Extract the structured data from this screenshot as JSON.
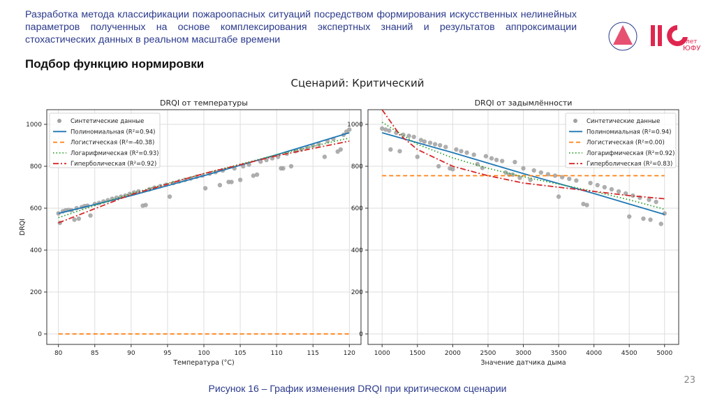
{
  "header": {
    "title": "Разработка метода классификации пожароопасных ситуаций посредством формирования искусственных нелинейных параметров полученных на основе комплексирования экспертных знаний и  результатов аппроксимации стохастических данных в реальном масштабе времени",
    "subtitle": "Подбор функцию нормировки",
    "logo_text": "110 лет ЮФУ"
  },
  "figure": {
    "suptitle": "Сценарий: Критический",
    "caption": "Рисунок 16 – График изменения DRQI при критическом сценарии",
    "page_number": "23"
  },
  "colors": {
    "data": "#a0a0a0",
    "poly": "#1f77b4",
    "logistic": "#ff7f0e",
    "log": "#2ca02c",
    "hyper": "#d62728",
    "header": "#2b3a8c",
    "logo": "#e0264f"
  },
  "chart_data": [
    {
      "type": "scatter",
      "title": "DRQI от температуры",
      "xlabel": "Температура (°C)",
      "ylabel": "DRQI",
      "xlim": [
        78.4,
        121.6
      ],
      "ylim": [
        -50,
        1070
      ],
      "xticks": [
        80,
        85,
        90,
        95,
        100,
        105,
        110,
        115,
        120
      ],
      "yticks": [
        0,
        200,
        400,
        600,
        800,
        1000
      ],
      "grid": true,
      "legend": "top-left",
      "legend_entries": [
        "Синтетические данные",
        "Полиномиальная (R²=0.94)",
        "Логистическая (R²=-40.38)",
        "Логарифмическая (R²=0.93)",
        "Гиперболическая (R²=0.92)"
      ],
      "points": [
        [
          80,
          575
        ],
        [
          80.2,
          530
        ],
        [
          80.6,
          585
        ],
        [
          81,
          590
        ],
        [
          81.4,
          592
        ],
        [
          81.8,
          590
        ],
        [
          82.2,
          545
        ],
        [
          82.5,
          600
        ],
        [
          82.8,
          550
        ],
        [
          83.2,
          605
        ],
        [
          83.6,
          610
        ],
        [
          84,
          612
        ],
        [
          84.4,
          565
        ],
        [
          85,
          620
        ],
        [
          85.6,
          625
        ],
        [
          86.2,
          632
        ],
        [
          86.8,
          638
        ],
        [
          87.4,
          645
        ],
        [
          88,
          650
        ],
        [
          88.6,
          655
        ],
        [
          89.2,
          660
        ],
        [
          89.8,
          668
        ],
        [
          90.4,
          675
        ],
        [
          91,
          680
        ],
        [
          91.6,
          612
        ],
        [
          92,
          615
        ],
        [
          92.5,
          690
        ],
        [
          93.2,
          698
        ],
        [
          94,
          705
        ],
        [
          94.8,
          712
        ],
        [
          95.3,
          655
        ],
        [
          95.8,
          720
        ],
        [
          96.6,
          728
        ],
        [
          97.4,
          735
        ],
        [
          98.2,
          742
        ],
        [
          99,
          750
        ],
        [
          99.8,
          756
        ],
        [
          100.2,
          695
        ],
        [
          100.8,
          765
        ],
        [
          101.6,
          772
        ],
        [
          102.2,
          710
        ],
        [
          102.6,
          780
        ],
        [
          103.4,
          725
        ],
        [
          103.8,
          725
        ],
        [
          104.2,
          790
        ],
        [
          105,
          735
        ],
        [
          105.4,
          800
        ],
        [
          106.2,
          808
        ],
        [
          106.8,
          755
        ],
        [
          107.3,
          760
        ],
        [
          107.8,
          822
        ],
        [
          108.6,
          830
        ],
        [
          109.4,
          838
        ],
        [
          110.2,
          845
        ],
        [
          110.6,
          790
        ],
        [
          110.9,
          790
        ],
        [
          111.4,
          860
        ],
        [
          112,
          800
        ],
        [
          112.6,
          872
        ],
        [
          113.4,
          880
        ],
        [
          114.2,
          890
        ],
        [
          115,
          898
        ],
        [
          115.8,
          905
        ],
        [
          116.6,
          845
        ],
        [
          117,
          920
        ],
        [
          117.8,
          930
        ],
        [
          118.4,
          870
        ],
        [
          118.8,
          880
        ],
        [
          119.2,
          950
        ],
        [
          119.6,
          965
        ],
        [
          120,
          975
        ]
      ],
      "series": [
        {
          "name": "Полиномиальная (R²=0.94)",
          "x": [
            80,
            90,
            100,
            110,
            120
          ],
          "y": [
            575,
            660,
            755,
            855,
            960
          ]
        },
        {
          "name": "Логистическая (R²=-40.38)",
          "x": [
            80,
            120
          ],
          "y": [
            0,
            0
          ]
        },
        {
          "name": "Логарифмическая (R²=0.93)",
          "x": [
            80,
            90,
            100,
            110,
            120
          ],
          "y": [
            555,
            670,
            765,
            855,
            935
          ]
        },
        {
          "name": "Гиперболическая (R²=0.92)",
          "x": [
            80,
            90,
            100,
            110,
            120
          ],
          "y": [
            530,
            665,
            765,
            850,
            920
          ]
        }
      ]
    },
    {
      "type": "scatter",
      "title": "DRQI от задымлённости",
      "xlabel": "Значение датчика дыма",
      "ylabel": "",
      "xlim": [
        800,
        5200
      ],
      "ylim": [
        -50,
        1070
      ],
      "xticks": [
        1000,
        1500,
        2000,
        2500,
        3000,
        3500,
        4000,
        4500,
        5000
      ],
      "yticks": [
        0,
        200,
        400,
        600,
        800,
        1000
      ],
      "grid": true,
      "legend": "top-right",
      "legend_entries": [
        "Синтетические данные",
        "Полиномиальная (R²=0.94)",
        "Логистическая (R²=0.00)",
        "Логарифмическая (R²=0.92)",
        "Гиперболическая (R²=0.83)"
      ],
      "points": [
        [
          1000,
          980
        ],
        [
          1050,
          975
        ],
        [
          1100,
          970
        ],
        [
          1120,
          880
        ],
        [
          1200,
          960
        ],
        [
          1250,
          872
        ],
        [
          1300,
          950
        ],
        [
          1380,
          945
        ],
        [
          1450,
          940
        ],
        [
          1500,
          845
        ],
        [
          1550,
          925
        ],
        [
          1600,
          918
        ],
        [
          1680,
          912
        ],
        [
          1750,
          905
        ],
        [
          1820,
          900
        ],
        [
          1800,
          800
        ],
        [
          1900,
          892
        ],
        [
          1960,
          790
        ],
        [
          2000,
          786
        ],
        [
          2050,
          880
        ],
        [
          2120,
          872
        ],
        [
          2200,
          865
        ],
        [
          2300,
          855
        ],
        [
          2350,
          810
        ],
        [
          2420,
          792
        ],
        [
          2470,
          848
        ],
        [
          2550,
          838
        ],
        [
          2620,
          830
        ],
        [
          2700,
          825
        ],
        [
          2750,
          770
        ],
        [
          2800,
          760
        ],
        [
          2850,
          760
        ],
        [
          2880,
          820
        ],
        [
          2950,
          745
        ],
        [
          3000,
          790
        ],
        [
          3100,
          735
        ],
        [
          3150,
          780
        ],
        [
          3250,
          770
        ],
        [
          3350,
          762
        ],
        [
          3450,
          755
        ],
        [
          3500,
          655
        ],
        [
          3550,
          748
        ],
        [
          3650,
          740
        ],
        [
          3750,
          732
        ],
        [
          3850,
          620
        ],
        [
          3900,
          615
        ],
        [
          3950,
          720
        ],
        [
          4050,
          710
        ],
        [
          4150,
          700
        ],
        [
          4250,
          690
        ],
        [
          4350,
          680
        ],
        [
          4450,
          670
        ],
        [
          4500,
          560
        ],
        [
          4550,
          660
        ],
        [
          4650,
          650
        ],
        [
          4700,
          550
        ],
        [
          4780,
          640
        ],
        [
          4800,
          545
        ],
        [
          4880,
          630
        ],
        [
          4950,
          525
        ],
        [
          5000,
          575
        ]
      ],
      "series": [
        {
          "name": "Полиномиальная (R²=0.94)",
          "x": [
            1000,
            2000,
            3000,
            4000,
            5000
          ],
          "y": [
            960,
            865,
            765,
            670,
            570
          ]
        },
        {
          "name": "Логистическая (R²=0.00)",
          "x": [
            1000,
            5000
          ],
          "y": [
            755,
            755
          ]
        },
        {
          "name": "Логарифмическая (R²=0.92)",
          "x": [
            1000,
            1500,
            2000,
            2500,
            3000,
            3500,
            4000,
            4500,
            5000
          ],
          "y": [
            1010,
            905,
            840,
            790,
            750,
            715,
            680,
            640,
            595
          ]
        },
        {
          "name": "Гиперболическая (R²=0.83)",
          "x": [
            1000,
            1250,
            1500,
            2000,
            2500,
            3000,
            3500,
            4000,
            4500,
            5000
          ],
          "y": [
            1070,
            950,
            880,
            800,
            755,
            720,
            700,
            680,
            660,
            645
          ]
        }
      ]
    }
  ]
}
